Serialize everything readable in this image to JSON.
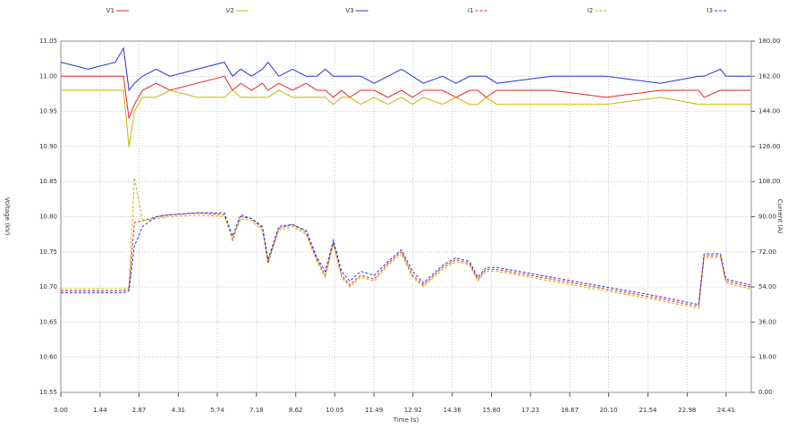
{
  "chart_data": {
    "type": "line",
    "x_label": "Time (s)",
    "y_label": "Voltage (kV)",
    "y2_label": "Current (A)",
    "x": [
      0,
      1,
      2,
      2.3,
      2.5,
      2.7,
      3,
      3.5,
      4,
      5,
      6,
      6.3,
      6.6,
      7,
      7.4,
      7.6,
      8,
      8.5,
      9,
      9.4,
      9.7,
      10,
      10.3,
      10.6,
      11,
      11.5,
      12,
      12.5,
      12.9,
      13.3,
      14,
      14.5,
      15,
      15.3,
      15.6,
      16,
      18,
      20,
      22,
      23.4,
      23.6,
      24.2,
      24.4,
      25.3
    ],
    "series": [
      {
        "name": "V1",
        "color": "#e8202a",
        "line_style": "solid",
        "axis": "y",
        "values": [
          11.0,
          11.0,
          11.0,
          11.0,
          10.94,
          10.96,
          10.98,
          10.99,
          10.98,
          10.99,
          11.0,
          10.98,
          10.99,
          10.98,
          10.99,
          10.98,
          10.99,
          10.98,
          10.99,
          10.98,
          10.98,
          10.97,
          10.98,
          10.97,
          10.98,
          10.98,
          10.97,
          10.98,
          10.97,
          10.98,
          10.98,
          10.97,
          10.98,
          10.98,
          10.97,
          10.98,
          10.98,
          10.97,
          10.98,
          10.98,
          10.97,
          10.98,
          10.98,
          10.98
        ]
      },
      {
        "name": "V2",
        "color": "#c2b800",
        "line_style": "solid",
        "axis": "y",
        "values": [
          10.98,
          10.98,
          10.98,
          10.98,
          10.9,
          10.95,
          10.97,
          10.97,
          10.98,
          10.97,
          10.97,
          10.98,
          10.97,
          10.97,
          10.97,
          10.97,
          10.98,
          10.97,
          10.97,
          10.97,
          10.97,
          10.96,
          10.97,
          10.97,
          10.96,
          10.97,
          10.96,
          10.97,
          10.96,
          10.97,
          10.96,
          10.97,
          10.96,
          10.96,
          10.97,
          10.96,
          10.96,
          10.96,
          10.97,
          10.96,
          10.96,
          10.96,
          10.96,
          10.96
        ]
      },
      {
        "name": "V3",
        "color": "#2830d8",
        "line_style": "solid",
        "axis": "y",
        "values": [
          11.02,
          11.01,
          11.02,
          11.04,
          10.98,
          10.99,
          11.0,
          11.01,
          11.0,
          11.01,
          11.02,
          11.0,
          11.01,
          11.0,
          11.01,
          11.02,
          11.0,
          11.01,
          11.0,
          11.0,
          11.01,
          11.0,
          11.0,
          11.0,
          11.0,
          10.99,
          11.0,
          11.01,
          11.0,
          10.99,
          11.0,
          10.99,
          11.0,
          11.0,
          11.0,
          10.99,
          11.0,
          11.0,
          10.99,
          11.0,
          11.0,
          11.01,
          11.0,
          11.0
        ]
      },
      {
        "name": "I1",
        "color": "#e8202a",
        "line_style": "dashed",
        "axis": "y2",
        "values": [
          52,
          52,
          52,
          52,
          53,
          87,
          88,
          90,
          91,
          92,
          91,
          78,
          90,
          89,
          84,
          66,
          84,
          86,
          82,
          68,
          60,
          77,
          60,
          55,
          60,
          58,
          66,
          72,
          60,
          55,
          64,
          68,
          66,
          58,
          63,
          63,
          58,
          53,
          48,
          44,
          70,
          70,
          57,
          54
        ]
      },
      {
        "name": "I2",
        "color": "#c2b800",
        "line_style": "dashed",
        "axis": "y2",
        "values": [
          53,
          53,
          53,
          53,
          54,
          110,
          88,
          89,
          90,
          91,
          90,
          79,
          89,
          88,
          83,
          67,
          83,
          85,
          81,
          67,
          59,
          76,
          59,
          54,
          59,
          57,
          65,
          71,
          59,
          54,
          63,
          67,
          65,
          57,
          62,
          62,
          57,
          52,
          47,
          43,
          69,
          69,
          56,
          53
        ]
      },
      {
        "name": "I3",
        "color": "#2830d8",
        "line_style": "dashed",
        "axis": "y2",
        "values": [
          51,
          51,
          51,
          51,
          52,
          75,
          85,
          90,
          91,
          92,
          92,
          80,
          91,
          89,
          85,
          68,
          85,
          86,
          83,
          69,
          62,
          78,
          62,
          57,
          62,
          60,
          67,
          73,
          62,
          56,
          65,
          69,
          67,
          59,
          64,
          64,
          59,
          54,
          49,
          45,
          71,
          71,
          58,
          55
        ]
      }
    ],
    "xlim": [
      0,
      25.33
    ],
    "xticks": [
      {
        "value": 0,
        "label": "0.00"
      },
      {
        "value": 1.44,
        "label": "1.44"
      },
      {
        "value": 2.87,
        "label": "2.87"
      },
      {
        "value": 4.31,
        "label": "4.31"
      },
      {
        "value": 5.74,
        "label": "5.74"
      },
      {
        "value": 7.18,
        "label": "7.18"
      },
      {
        "value": 8.62,
        "label": "8.62"
      },
      {
        "value": 10.05,
        "label": "10.05"
      },
      {
        "value": 11.49,
        "label": "11.49"
      },
      {
        "value": 12.92,
        "label": "12.92"
      },
      {
        "value": 14.36,
        "label": "14.36"
      },
      {
        "value": 15.8,
        "label": "15.80"
      },
      {
        "value": 17.23,
        "label": "17.23"
      },
      {
        "value": 18.67,
        "label": "18.67"
      },
      {
        "value": 20.1,
        "label": "20.10"
      },
      {
        "value": 21.54,
        "label": "21.54"
      },
      {
        "value": 22.98,
        "label": "22.98"
      },
      {
        "value": 24.41,
        "label": "24.41"
      }
    ],
    "ylim": [
      10.55,
      11.05
    ],
    "yticks": [
      {
        "value": 10.55,
        "label": "10.55"
      },
      {
        "value": 10.6,
        "label": "10.60"
      },
      {
        "value": 10.65,
        "label": "10.65"
      },
      {
        "value": 10.7,
        "label": "10.70"
      },
      {
        "value": 10.75,
        "label": "10.75"
      },
      {
        "value": 10.8,
        "label": "10.80"
      },
      {
        "value": 10.85,
        "label": "10.85"
      },
      {
        "value": 10.9,
        "label": "10.90"
      },
      {
        "value": 10.95,
        "label": "10.95"
      },
      {
        "value": 11.0,
        "label": "11.00"
      },
      {
        "value": 11.05,
        "label": "11.05"
      }
    ],
    "y2lim": [
      0,
      180
    ],
    "y2ticks": [
      {
        "value": 0,
        "label": "0.00"
      },
      {
        "value": 18,
        "label": "18.00"
      },
      {
        "value": 36,
        "label": "36.00"
      },
      {
        "value": 54,
        "label": "54.00"
      },
      {
        "value": 72,
        "label": "72.00"
      },
      {
        "value": 90,
        "label": "90.00"
      },
      {
        "value": 108,
        "label": "108.00"
      },
      {
        "value": 126,
        "label": "126.00"
      },
      {
        "value": 144,
        "label": "144.00"
      },
      {
        "value": 162,
        "label": "162.00"
      },
      {
        "value": 180,
        "label": "180.00"
      }
    ],
    "grid": true,
    "legend": "top"
  }
}
